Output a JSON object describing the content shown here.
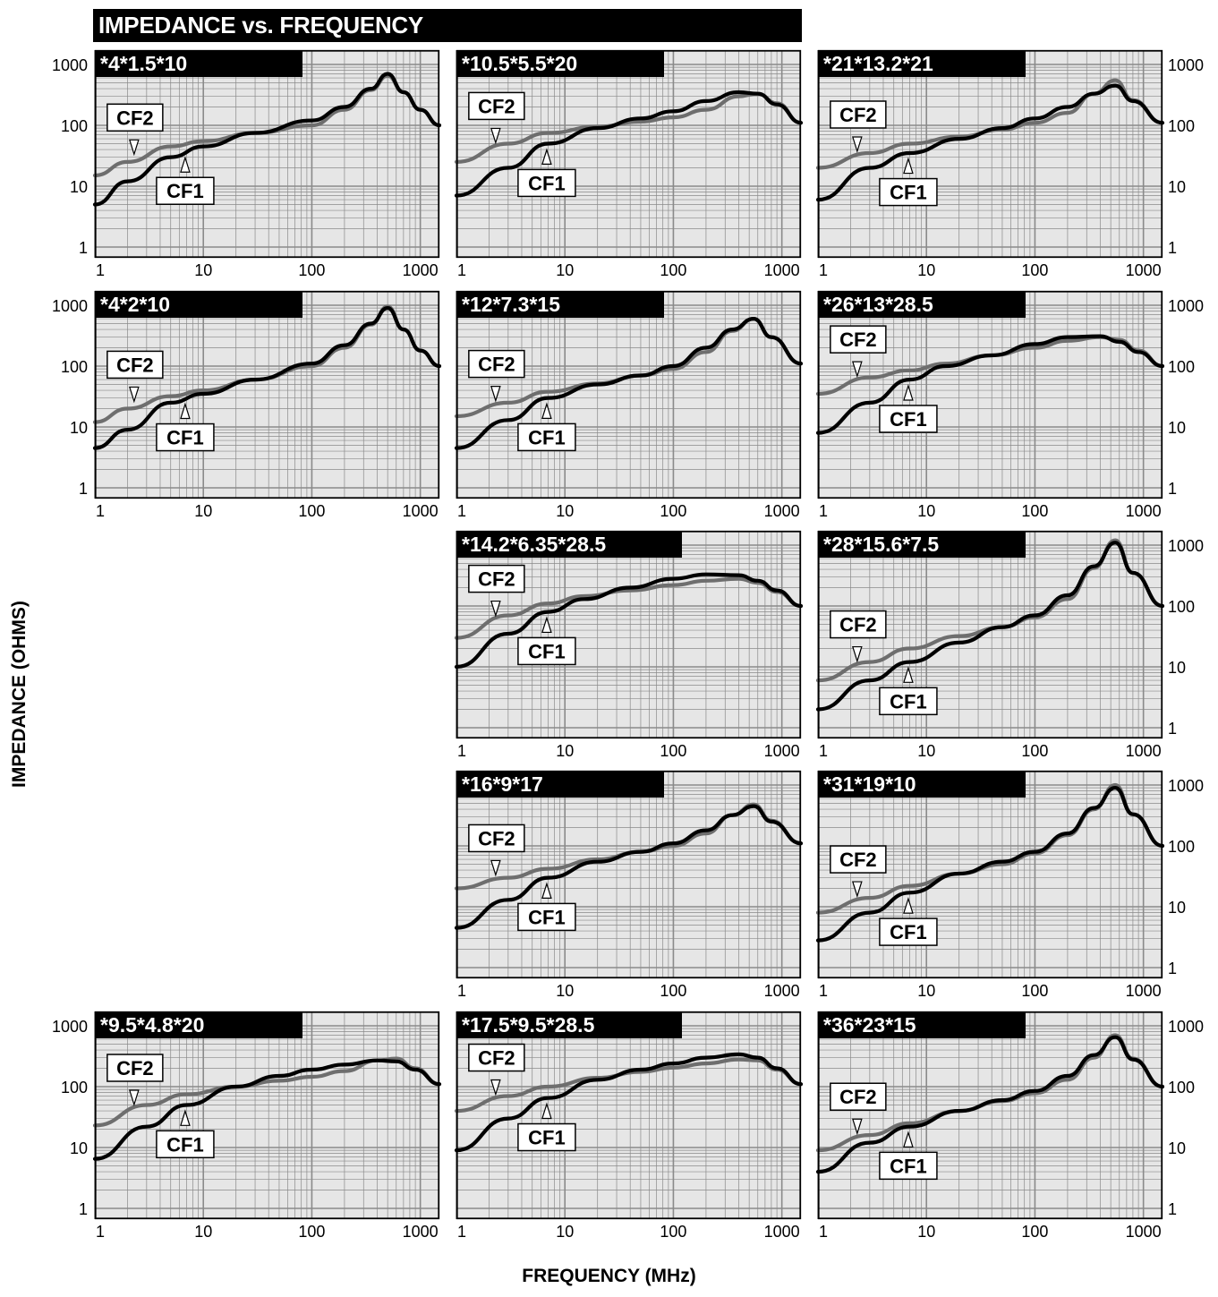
{
  "header": {
    "title": "IMPEDANCE vs. FREQUENCY"
  },
  "axes": {
    "ylabel": "IMPEDANCE (OHMS)",
    "xlabel": "FREQUENCY (MHz)"
  },
  "colors": {
    "CF1": "#000000",
    "CF2": "#6e6e6e",
    "plot_bg": "#e6e6e6",
    "grid": "#8a8a8a"
  },
  "chart_data": [
    {
      "type": "line",
      "title": "*4*1.5*10",
      "xscale": "log",
      "yscale": "log",
      "xlim": [
        1,
        1500
      ],
      "ylim": [
        1,
        1000
      ],
      "x_ticks": [
        "1",
        "10",
        "100",
        "1000"
      ],
      "y_ticks": [
        "1",
        "10",
        "100",
        "1000"
      ],
      "series": [
        {
          "name": "CF1",
          "x": [
            1,
            2,
            5,
            10,
            30,
            100,
            200,
            350,
            500,
            700,
            1000,
            1500
          ],
          "y": [
            5,
            12,
            30,
            45,
            75,
            120,
            200,
            400,
            700,
            350,
            180,
            100
          ]
        },
        {
          "name": "CF2",
          "x": [
            1,
            2,
            5,
            10,
            30,
            100,
            200,
            350,
            500,
            700,
            1000,
            1500
          ],
          "y": [
            15,
            25,
            45,
            55,
            75,
            100,
            180,
            380,
            650,
            350,
            180,
            100
          ]
        }
      ]
    },
    {
      "type": "line",
      "title": "*10.5*5.5*20",
      "xscale": "log",
      "yscale": "log",
      "xlim": [
        1,
        1500
      ],
      "ylim": [
        1,
        1000
      ],
      "x_ticks": [
        "1",
        "10",
        "100",
        "1000"
      ],
      "y_ticks": [
        "1",
        "10",
        "100",
        "1000"
      ],
      "series": [
        {
          "name": "CF1",
          "x": [
            1,
            3,
            7,
            20,
            50,
            100,
            200,
            400,
            600,
            900,
            1500
          ],
          "y": [
            7,
            20,
            50,
            90,
            130,
            170,
            250,
            350,
            330,
            220,
            110
          ]
        },
        {
          "name": "CF2",
          "x": [
            1,
            3,
            7,
            20,
            50,
            100,
            200,
            400,
            600,
            900,
            1500
          ],
          "y": [
            25,
            50,
            75,
            95,
            115,
            135,
            180,
            300,
            330,
            230,
            110
          ]
        }
      ]
    },
    {
      "type": "line",
      "title": "*21*13.2*21",
      "xscale": "log",
      "yscale": "log",
      "xlim": [
        1,
        1500
      ],
      "ylim": [
        1,
        1000
      ],
      "x_ticks": [
        "1",
        "10",
        "100",
        "1000"
      ],
      "y_ticks": [
        "1",
        "10",
        "100",
        "1000"
      ],
      "series": [
        {
          "name": "CF1",
          "x": [
            1,
            3,
            7,
            20,
            50,
            100,
            200,
            350,
            550,
            800,
            1500
          ],
          "y": [
            6,
            20,
            35,
            60,
            90,
            130,
            200,
            330,
            450,
            250,
            110
          ]
        },
        {
          "name": "CF2",
          "x": [
            1,
            3,
            7,
            20,
            50,
            100,
            200,
            350,
            550,
            800,
            1500
          ],
          "y": [
            20,
            35,
            50,
            65,
            85,
            110,
            160,
            330,
            550,
            260,
            110
          ]
        }
      ]
    },
    {
      "type": "line",
      "title": "*4*2*10",
      "xscale": "log",
      "yscale": "log",
      "xlim": [
        1,
        1500
      ],
      "ylim": [
        1,
        1000
      ],
      "x_ticks": [
        "1",
        "10",
        "100",
        "1000"
      ],
      "y_ticks": [
        "1",
        "10",
        "100",
        "1000"
      ],
      "series": [
        {
          "name": "CF1",
          "x": [
            1,
            2,
            5,
            10,
            30,
            100,
            200,
            350,
            500,
            700,
            1000,
            1500
          ],
          "y": [
            4.5,
            9,
            25,
            35,
            60,
            110,
            220,
            500,
            900,
            400,
            180,
            100
          ]
        },
        {
          "name": "CF2",
          "x": [
            1,
            2,
            5,
            10,
            30,
            100,
            200,
            350,
            500,
            700,
            1000,
            1500
          ],
          "y": [
            12,
            20,
            32,
            40,
            60,
            100,
            200,
            480,
            950,
            400,
            180,
            100
          ]
        }
      ]
    },
    {
      "type": "line",
      "title": "*12*7.3*15",
      "xscale": "log",
      "yscale": "log",
      "xlim": [
        1,
        1500
      ],
      "ylim": [
        1,
        1000
      ],
      "x_ticks": [
        "1",
        "10",
        "100",
        "1000"
      ],
      "y_ticks": [
        "1",
        "10",
        "100",
        "1000"
      ],
      "series": [
        {
          "name": "CF1",
          "x": [
            1,
            3,
            7,
            20,
            50,
            100,
            200,
            350,
            550,
            800,
            1500
          ],
          "y": [
            4.5,
            13,
            30,
            50,
            70,
            100,
            200,
            400,
            600,
            300,
            110
          ]
        },
        {
          "name": "CF2",
          "x": [
            1,
            3,
            7,
            20,
            50,
            100,
            200,
            350,
            550,
            800,
            1500
          ],
          "y": [
            15,
            25,
            38,
            52,
            70,
            90,
            170,
            380,
            600,
            300,
            110
          ]
        }
      ]
    },
    {
      "type": "line",
      "title": "*26*13*28.5",
      "xscale": "log",
      "yscale": "log",
      "xlim": [
        1,
        1500
      ],
      "ylim": [
        1,
        1000
      ],
      "x_ticks": [
        "1",
        "10",
        "100",
        "1000"
      ],
      "y_ticks": [
        "1",
        "10",
        "100",
        "1000"
      ],
      "series": [
        {
          "name": "CF1",
          "x": [
            1,
            3,
            7,
            15,
            40,
            100,
            200,
            400,
            600,
            900,
            1500
          ],
          "y": [
            8,
            25,
            60,
            100,
            150,
            230,
            300,
            310,
            250,
            170,
            100
          ]
        },
        {
          "name": "CF2",
          "x": [
            1,
            3,
            7,
            15,
            40,
            100,
            200,
            400,
            600,
            900,
            1500
          ],
          "y": [
            35,
            65,
            85,
            110,
            150,
            200,
            260,
            300,
            270,
            180,
            100
          ]
        }
      ]
    },
    {
      "type": "line",
      "title": "*14.2*6.35*28.5",
      "xscale": "log",
      "yscale": "log",
      "xlim": [
        1,
        1500
      ],
      "ylim": [
        1,
        1000
      ],
      "x_ticks": [
        "1",
        "10",
        "100",
        "1000"
      ],
      "y_ticks": [],
      "series": [
        {
          "name": "CF1",
          "x": [
            1,
            3,
            7,
            15,
            40,
            100,
            200,
            400,
            600,
            900,
            1500
          ],
          "y": [
            10,
            35,
            80,
            130,
            200,
            280,
            330,
            320,
            260,
            180,
            100
          ]
        },
        {
          "name": "CF2",
          "x": [
            1,
            3,
            7,
            15,
            40,
            100,
            200,
            400,
            600,
            900,
            1500
          ],
          "y": [
            30,
            70,
            110,
            145,
            180,
            220,
            260,
            280,
            240,
            170,
            100
          ]
        }
      ]
    },
    {
      "type": "line",
      "title": "*28*15.6*7.5",
      "xscale": "log",
      "yscale": "log",
      "xlim": [
        1,
        1500
      ],
      "ylim": [
        1,
        1000
      ],
      "x_ticks": [
        "1",
        "10",
        "100",
        "1000"
      ],
      "y_ticks": [
        "1",
        "10",
        "100",
        "1000"
      ],
      "series": [
        {
          "name": "CF1",
          "x": [
            1,
            3,
            7,
            20,
            50,
            100,
            200,
            350,
            550,
            800,
            1500
          ],
          "y": [
            2,
            6,
            12,
            25,
            45,
            70,
            150,
            450,
            1100,
            350,
            100
          ]
        },
        {
          "name": "CF2",
          "x": [
            1,
            3,
            7,
            20,
            50,
            100,
            200,
            350,
            550,
            800,
            1500
          ],
          "y": [
            6,
            12,
            20,
            32,
            45,
            65,
            130,
            420,
            1200,
            350,
            100
          ]
        }
      ]
    },
    {
      "type": "line",
      "title": "*16*9*17",
      "xscale": "log",
      "yscale": "log",
      "xlim": [
        1,
        1500
      ],
      "ylim": [
        1,
        1000
      ],
      "x_ticks": [
        "1",
        "10",
        "100",
        "1000"
      ],
      "y_ticks": [],
      "series": [
        {
          "name": "CF1",
          "x": [
            1,
            3,
            7,
            20,
            50,
            100,
            200,
            350,
            550,
            800,
            1500
          ],
          "y": [
            4.5,
            13,
            30,
            55,
            80,
            110,
            180,
            320,
            450,
            250,
            110
          ]
        },
        {
          "name": "CF2",
          "x": [
            1,
            3,
            7,
            20,
            50,
            100,
            200,
            350,
            550,
            800,
            1500
          ],
          "y": [
            20,
            30,
            42,
            60,
            80,
            100,
            160,
            320,
            480,
            260,
            110
          ]
        }
      ]
    },
    {
      "type": "line",
      "title": "*31*19*10",
      "xscale": "log",
      "yscale": "log",
      "xlim": [
        1,
        1500
      ],
      "ylim": [
        1,
        1000
      ],
      "x_ticks": [
        "1",
        "10",
        "100",
        "1000"
      ],
      "y_ticks": [
        "1",
        "10",
        "100",
        "1000"
      ],
      "series": [
        {
          "name": "CF1",
          "x": [
            1,
            3,
            7,
            20,
            50,
            100,
            200,
            350,
            550,
            800,
            1500
          ],
          "y": [
            2.8,
            8,
            17,
            35,
            55,
            80,
            160,
            420,
            900,
            330,
            100
          ]
        },
        {
          "name": "CF2",
          "x": [
            1,
            3,
            7,
            20,
            50,
            100,
            200,
            350,
            550,
            800,
            1500
          ],
          "y": [
            8,
            14,
            22,
            35,
            50,
            75,
            150,
            400,
            1000,
            330,
            100
          ]
        }
      ]
    },
    {
      "type": "line",
      "title": "*9.5*4.8*20",
      "xscale": "log",
      "yscale": "log",
      "xlim": [
        1,
        1500
      ],
      "ylim": [
        1,
        1000
      ],
      "x_ticks": [
        "1",
        "10",
        "100",
        "1000"
      ],
      "y_ticks": [
        "1",
        "10",
        "100",
        "1000"
      ],
      "series": [
        {
          "name": "CF1",
          "x": [
            1,
            3,
            7,
            20,
            50,
            100,
            200,
            400,
            600,
            900,
            1500
          ],
          "y": [
            6.5,
            22,
            50,
            100,
            150,
            190,
            230,
            270,
            260,
            190,
            110
          ]
        },
        {
          "name": "CF2",
          "x": [
            1,
            3,
            7,
            20,
            50,
            100,
            200,
            400,
            600,
            900,
            1500
          ],
          "y": [
            23,
            50,
            75,
            100,
            125,
            145,
            180,
            270,
            290,
            200,
            110
          ]
        }
      ]
    },
    {
      "type": "line",
      "title": "*17.5*9.5*28.5",
      "xscale": "log",
      "yscale": "log",
      "xlim": [
        1,
        1500
      ],
      "ylim": [
        1,
        1000
      ],
      "x_ticks": [
        "1",
        "10",
        "100",
        "1000"
      ],
      "y_ticks": [],
      "series": [
        {
          "name": "CF1",
          "x": [
            1,
            3,
            7,
            20,
            50,
            100,
            200,
            400,
            600,
            900,
            1500
          ],
          "y": [
            9,
            30,
            65,
            130,
            190,
            240,
            300,
            340,
            300,
            200,
            110
          ]
        },
        {
          "name": "CF2",
          "x": [
            1,
            3,
            7,
            20,
            50,
            100,
            200,
            400,
            600,
            900,
            1500
          ],
          "y": [
            40,
            70,
            100,
            140,
            175,
            205,
            240,
            280,
            270,
            190,
            110
          ]
        }
      ]
    },
    {
      "type": "line",
      "title": "*36*23*15",
      "xscale": "log",
      "yscale": "log",
      "xlim": [
        1,
        1500
      ],
      "ylim": [
        1,
        1000
      ],
      "x_ticks": [
        "1",
        "10",
        "100",
        "1000"
      ],
      "y_ticks": [
        "1",
        "10",
        "100",
        "1000"
      ],
      "series": [
        {
          "name": "CF1",
          "x": [
            1,
            3,
            7,
            20,
            50,
            100,
            200,
            350,
            550,
            800,
            1500
          ],
          "y": [
            4,
            12,
            22,
            40,
            60,
            85,
            150,
            330,
            650,
            280,
            100
          ]
        },
        {
          "name": "CF2",
          "x": [
            1,
            3,
            7,
            20,
            50,
            100,
            200,
            350,
            550,
            800,
            1500
          ],
          "y": [
            9,
            16,
            25,
            40,
            58,
            78,
            130,
            300,
            700,
            290,
            100
          ]
        }
      ]
    }
  ]
}
